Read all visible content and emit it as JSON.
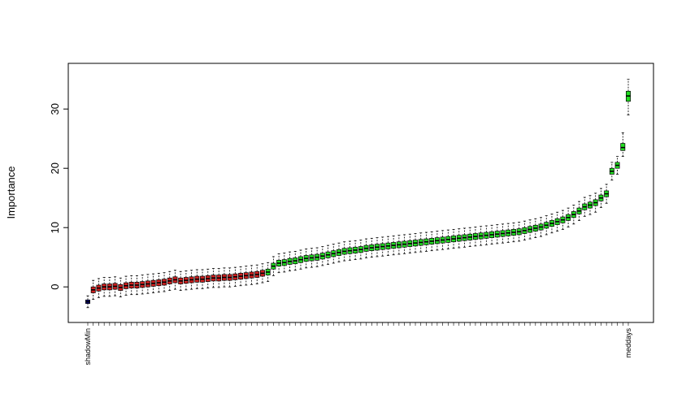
{
  "chart_data": {
    "type": "boxplot",
    "y_label": "Importance",
    "ylim": [
      -6,
      37.7
    ],
    "yticks": [
      0,
      10,
      20,
      30
    ],
    "categories": [
      "shadowMin",
      null,
      null,
      null,
      null,
      null,
      null,
      null,
      null,
      null,
      null,
      null,
      null,
      null,
      null,
      null,
      null,
      null,
      null,
      null,
      null,
      null,
      null,
      null,
      null,
      null,
      null,
      null,
      null,
      null,
      null,
      null,
      null,
      null,
      null,
      null,
      null,
      null,
      null,
      null,
      null,
      null,
      null,
      null,
      null,
      null,
      null,
      null,
      null,
      null,
      null,
      null,
      null,
      null,
      null,
      null,
      null,
      null,
      null,
      null,
      null,
      null,
      null,
      null,
      null,
      null,
      null,
      null,
      null,
      null,
      null,
      null,
      null,
      null,
      null,
      null,
      null,
      null,
      null,
      null,
      null,
      null,
      null,
      null,
      null,
      null,
      null,
      null,
      null,
      null,
      null,
      null,
      null,
      null,
      null,
      null,
      null,
      null,
      null,
      "meddays"
    ],
    "boxes": [
      [
        -3.5,
        -2.8,
        -2.5,
        -2.2,
        -1.5
      ],
      [
        -2.1,
        -1.0,
        -0.5,
        0.0,
        1.1
      ],
      [
        -1.8,
        -0.7,
        -0.2,
        0.3,
        1.4
      ],
      [
        -1.6,
        -0.5,
        0,
        0.5,
        1.6
      ],
      [
        -1.6,
        -0.5,
        0,
        0.5,
        1.6
      ],
      [
        -1.5,
        -0.4,
        0.1,
        0.6,
        1.7
      ],
      [
        -1.7,
        -0.6,
        -0.1,
        0.4,
        1.5
      ],
      [
        -1.4,
        -0.3,
        0.2,
        0.7,
        1.8
      ],
      [
        -1.3,
        -0.2,
        0.3,
        0.8,
        1.9
      ],
      [
        -1.3,
        -0.2,
        0.3,
        0.8,
        1.9
      ],
      [
        -1.2,
        -0.1,
        0.4,
        0.9,
        2.0
      ],
      [
        -1.1,
        0,
        0.5,
        1.0,
        2.1
      ],
      [
        -1.0,
        0.1,
        0.6,
        1.1,
        2.2
      ],
      [
        -0.9,
        0.2,
        0.7,
        1.2,
        2.3
      ],
      [
        -0.8,
        0.3,
        0.8,
        1.3,
        2.4
      ],
      [
        -0.6,
        0.5,
        1.0,
        1.5,
        2.6
      ],
      [
        -0.4,
        0.7,
        1.2,
        1.7,
        2.8
      ],
      [
        -0.6,
        0.5,
        1.0,
        1.5,
        2.6
      ],
      [
        -0.5,
        0.6,
        1.1,
        1.6,
        2.7
      ],
      [
        -0.4,
        0.7,
        1.2,
        1.7,
        2.8
      ],
      [
        -0.3,
        0.8,
        1.3,
        1.8,
        2.9
      ],
      [
        -0.3,
        0.8,
        1.3,
        1.8,
        2.9
      ],
      [
        -0.2,
        0.9,
        1.4,
        1.9,
        3.0
      ],
      [
        -0.1,
        1.0,
        1.5,
        2.0,
        3.1
      ],
      [
        -0.1,
        1.0,
        1.5,
        2.0,
        3.1
      ],
      [
        0,
        1.1,
        1.6,
        2.1,
        3.2
      ],
      [
        0,
        1.1,
        1.6,
        2.1,
        3.2
      ],
      [
        0.1,
        1.2,
        1.7,
        2.2,
        3.3
      ],
      [
        0.2,
        1.3,
        1.8,
        2.3,
        3.4
      ],
      [
        0.3,
        1.4,
        1.9,
        2.4,
        3.5
      ],
      [
        0.4,
        1.5,
        2.0,
        2.5,
        3.6
      ],
      [
        0.5,
        1.6,
        2.1,
        2.6,
        3.7
      ],
      [
        0.7,
        1.8,
        2.3,
        2.8,
        3.9
      ],
      [
        0.9,
        2.0,
        2.5,
        3.0,
        4.1
      ],
      [
        1.9,
        3.0,
        3.5,
        4.0,
        5.1
      ],
      [
        2.4,
        3.5,
        4.0,
        4.5,
        5.6
      ],
      [
        2.5,
        3.6,
        4.1,
        4.6,
        5.7
      ],
      [
        2.7,
        3.8,
        4.3,
        4.8,
        5.9
      ],
      [
        2.8,
        3.9,
        4.4,
        4.9,
        6.0
      ],
      [
        3.0,
        4.1,
        4.6,
        5.1,
        6.2
      ],
      [
        3.2,
        4.3,
        4.8,
        5.3,
        6.4
      ],
      [
        3.3,
        4.4,
        4.9,
        5.4,
        6.5
      ],
      [
        3.4,
        4.5,
        5.0,
        5.5,
        6.6
      ],
      [
        3.6,
        4.7,
        5.2,
        5.7,
        6.8
      ],
      [
        3.8,
        4.9,
        5.4,
        5.9,
        7.0
      ],
      [
        4.0,
        5.1,
        5.6,
        6.1,
        7.2
      ],
      [
        4.2,
        5.3,
        5.8,
        6.3,
        7.4
      ],
      [
        4.4,
        5.5,
        6.0,
        6.5,
        7.6
      ],
      [
        4.5,
        5.6,
        6.1,
        6.6,
        7.7
      ],
      [
        4.6,
        5.7,
        6.2,
        6.7,
        7.8
      ],
      [
        4.7,
        5.8,
        6.3,
        6.8,
        7.9
      ],
      [
        4.9,
        6.0,
        6.5,
        7.0,
        8.1
      ],
      [
        5.0,
        6.1,
        6.6,
        7.1,
        8.2
      ],
      [
        5.1,
        6.2,
        6.7,
        7.2,
        8.3
      ],
      [
        5.2,
        6.3,
        6.8,
        7.3,
        8.4
      ],
      [
        5.3,
        6.4,
        6.9,
        7.4,
        8.5
      ],
      [
        5.4,
        6.5,
        7.0,
        7.5,
        8.6
      ],
      [
        5.5,
        6.6,
        7.1,
        7.6,
        8.7
      ],
      [
        5.6,
        6.7,
        7.2,
        7.7,
        8.8
      ],
      [
        5.7,
        6.8,
        7.3,
        7.8,
        8.9
      ],
      [
        5.8,
        6.9,
        7.4,
        7.9,
        9.0
      ],
      [
        5.9,
        7.0,
        7.5,
        8.0,
        9.1
      ],
      [
        6.0,
        7.1,
        7.6,
        8.1,
        9.2
      ],
      [
        6.1,
        7.2,
        7.7,
        8.2,
        9.3
      ],
      [
        6.2,
        7.3,
        7.8,
        8.3,
        9.4
      ],
      [
        6.3,
        7.4,
        7.9,
        8.4,
        9.5
      ],
      [
        6.4,
        7.5,
        8.0,
        8.5,
        9.6
      ],
      [
        6.5,
        7.6,
        8.1,
        8.6,
        9.7
      ],
      [
        6.6,
        7.7,
        8.2,
        8.7,
        9.8
      ],
      [
        6.7,
        7.8,
        8.3,
        8.8,
        9.9
      ],
      [
        6.8,
        7.9,
        8.4,
        8.9,
        10.0
      ],
      [
        6.9,
        8.0,
        8.5,
        9.0,
        10.1
      ],
      [
        7.0,
        8.1,
        8.6,
        9.1,
        10.2
      ],
      [
        7.1,
        8.2,
        8.7,
        9.2,
        10.3
      ],
      [
        7.2,
        8.3,
        8.8,
        9.3,
        10.4
      ],
      [
        7.3,
        8.4,
        8.9,
        9.4,
        10.5
      ],
      [
        7.4,
        8.5,
        9.0,
        9.5,
        10.6
      ],
      [
        7.5,
        8.6,
        9.1,
        9.6,
        10.7
      ],
      [
        7.6,
        8.7,
        9.2,
        9.7,
        10.8
      ],
      [
        7.7,
        8.8,
        9.3,
        9.8,
        10.9
      ],
      [
        7.9,
        9.0,
        9.5,
        10.0,
        11.1
      ],
      [
        8.1,
        9.2,
        9.7,
        10.2,
        11.3
      ],
      [
        8.3,
        9.4,
        9.9,
        10.4,
        11.5
      ],
      [
        8.5,
        9.6,
        10.1,
        10.6,
        11.7
      ],
      [
        8.8,
        9.9,
        10.4,
        10.9,
        12.0
      ],
      [
        9.1,
        10.2,
        10.7,
        11.2,
        12.3
      ],
      [
        9.4,
        10.5,
        11.0,
        11.5,
        12.6
      ],
      [
        9.7,
        10.8,
        11.3,
        11.8,
        12.9
      ],
      [
        10.1,
        11.2,
        11.7,
        12.2,
        13.3
      ],
      [
        10.6,
        11.7,
        12.2,
        12.7,
        13.8
      ],
      [
        11.2,
        12.3,
        12.8,
        13.3,
        14.4
      ],
      [
        11.9,
        13.0,
        13.5,
        14.0,
        15.1
      ],
      [
        12.2,
        13.3,
        13.8,
        14.3,
        15.4
      ],
      [
        12.6,
        13.7,
        14.2,
        14.7,
        15.8
      ],
      [
        13.4,
        14.5,
        15.0,
        15.5,
        16.6
      ],
      [
        14.1,
        15.2,
        15.7,
        16.2,
        17.3
      ],
      [
        18.0,
        19.0,
        19.5,
        20.0,
        21.0
      ],
      [
        19.0,
        20.0,
        20.5,
        21.0,
        22.0
      ],
      [
        22.0,
        23.0,
        23.5,
        24.2,
        26.0
      ],
      [
        29.0,
        31.3,
        32.2,
        33.0,
        35.0
      ]
    ],
    "colors": [
      "#00008b",
      "#d22020",
      "#d22020",
      "#d22020",
      "#d22020",
      "#d22020",
      "#d22020",
      "#d22020",
      "#d22020",
      "#d22020",
      "#d22020",
      "#d22020",
      "#d22020",
      "#d22020",
      "#d22020",
      "#d22020",
      "#d22020",
      "#d22020",
      "#d22020",
      "#d22020",
      "#d22020",
      "#d22020",
      "#d22020",
      "#d22020",
      "#d22020",
      "#d22020",
      "#d22020",
      "#d22020",
      "#d22020",
      "#d22020",
      "#d22020",
      "#d22020",
      "#d22020",
      "#22dd22",
      "#22dd22",
      "#22dd22",
      "#22dd22",
      "#22dd22",
      "#22dd22",
      "#22dd22",
      "#22dd22",
      "#22dd22",
      "#22dd22",
      "#22dd22",
      "#22dd22",
      "#22dd22",
      "#22dd22",
      "#22dd22",
      "#22dd22",
      "#22dd22",
      "#22dd22",
      "#22dd22",
      "#22dd22",
      "#22dd22",
      "#22dd22",
      "#22dd22",
      "#22dd22",
      "#22dd22",
      "#22dd22",
      "#22dd22",
      "#22dd22",
      "#22dd22",
      "#22dd22",
      "#22dd22",
      "#22dd22",
      "#22dd22",
      "#22dd22",
      "#22dd22",
      "#22dd22",
      "#22dd22",
      "#22dd22",
      "#22dd22",
      "#22dd22",
      "#22dd22",
      "#22dd22",
      "#22dd22",
      "#22dd22",
      "#22dd22",
      "#22dd22",
      "#22dd22",
      "#22dd22",
      "#22dd22",
      "#22dd22",
      "#22dd22",
      "#22dd22",
      "#22dd22",
      "#22dd22",
      "#22dd22",
      "#22dd22",
      "#22dd22",
      "#22dd22",
      "#22dd22",
      "#22dd22",
      "#22dd22",
      "#22dd22",
      "#22dd22",
      "#22dd22",
      "#22dd22",
      "#22dd22",
      "#22dd22"
    ]
  }
}
